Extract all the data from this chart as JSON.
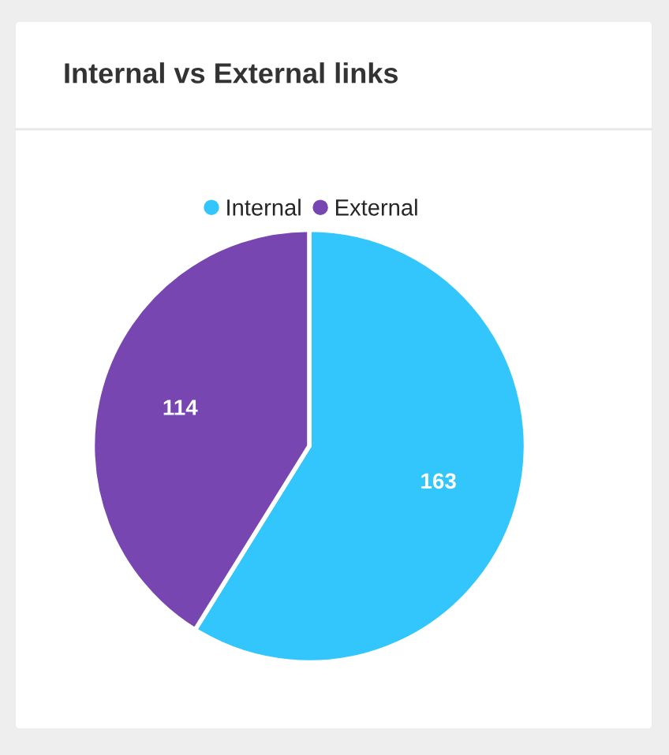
{
  "chart_data": {
    "type": "pie",
    "title": "Internal vs External links",
    "categories": [
      "Internal",
      "External"
    ],
    "values": [
      163,
      114
    ],
    "colors": [
      "#33c6fc",
      "#7746b0"
    ],
    "data_labels": true,
    "legend": "top"
  }
}
